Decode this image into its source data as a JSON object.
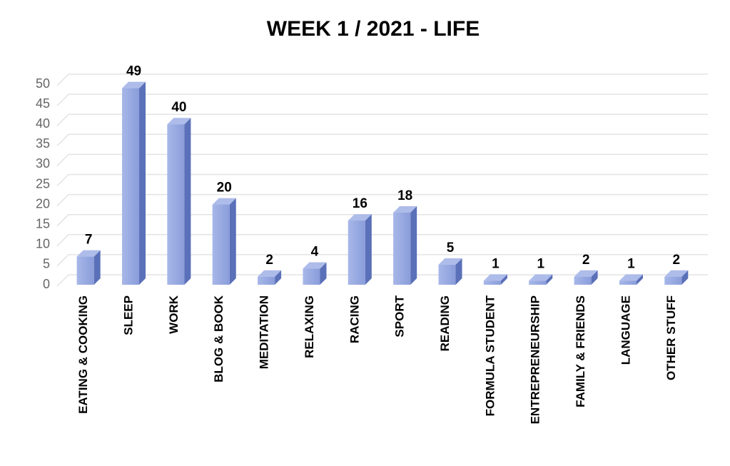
{
  "chart_data": {
    "type": "bar",
    "title": "WEEK 1  / 2021  - LIFE",
    "categories": [
      "EATING & COOKING",
      "SLEEP",
      "WORK",
      "BLOG & BOOK",
      "MEDITATION",
      "RELAXING",
      "RACING",
      "SPORT",
      "READING",
      "FORMULA STUDENT",
      "ENTREPRENEURSHIP",
      "FAMILY & FRIENDS",
      "LANGUAGE",
      "OTHER STUFF"
    ],
    "values": [
      7,
      49,
      40,
      20,
      2,
      4,
      16,
      18,
      5,
      1,
      1,
      2,
      1,
      2
    ],
    "color": "#93a6e0",
    "ylim": [
      0,
      50
    ],
    "yticks": [
      0,
      5,
      10,
      15,
      20,
      25,
      30,
      35,
      40,
      45,
      50
    ],
    "grid": true
  }
}
